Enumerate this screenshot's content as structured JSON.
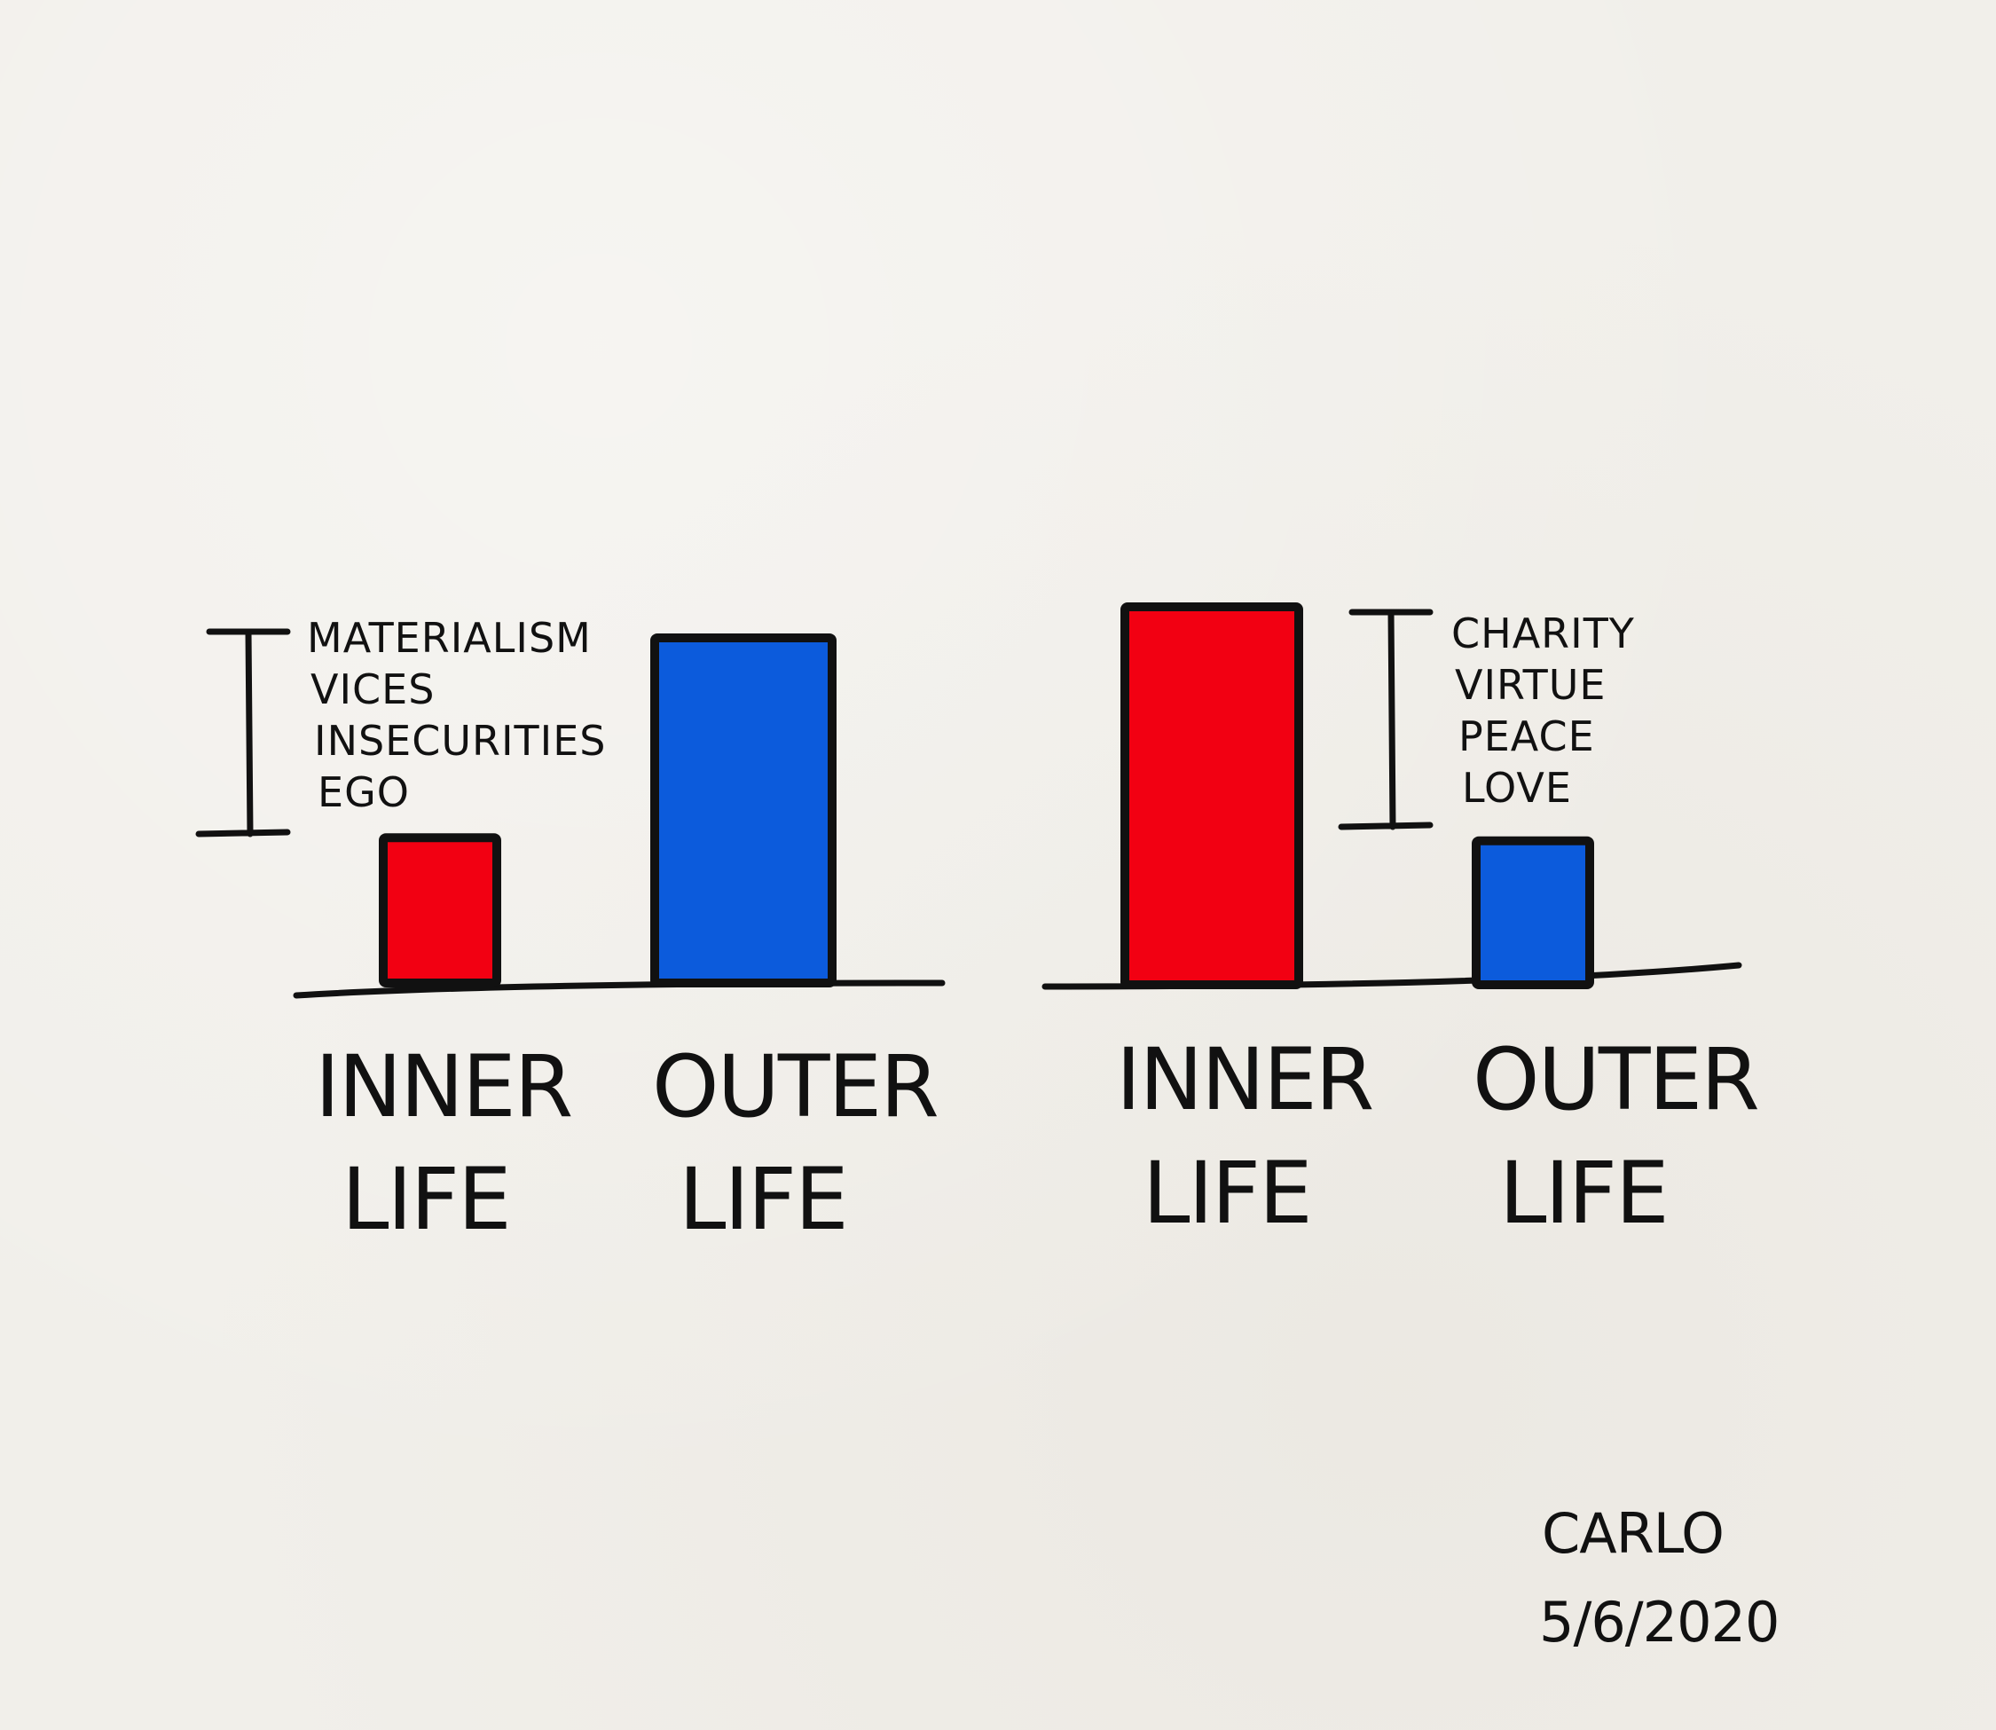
{
  "colors": {
    "inner": "#f20012",
    "outer": "#0c5bdc",
    "ink": "#111111",
    "paper": "#f1efea"
  },
  "chart_data": [
    {
      "type": "bar",
      "categories": [
        [
          "INNER",
          "LIFE"
        ],
        [
          "OUTER",
          "LIFE"
        ]
      ],
      "values": [
        1.6,
        3.8
      ],
      "ylim": [
        0,
        4.2
      ],
      "grid": false,
      "annotation": {
        "target": "INNER",
        "lines": [
          "MATERIALISM",
          "VICES",
          "INSECURITIES",
          "EGO"
        ]
      }
    },
    {
      "type": "bar",
      "categories": [
        [
          "INNER",
          "LIFE"
        ],
        [
          "OUTER",
          "LIFE"
        ]
      ],
      "values": [
        4.2,
        1.6
      ],
      "ylim": [
        0,
        4.2
      ],
      "grid": false,
      "annotation": {
        "target": "OUTER",
        "lines": [
          "CHARITY",
          "VIRTUE",
          "PEACE",
          "LOVE"
        ]
      }
    }
  ],
  "signature": {
    "name": "CARLO",
    "date": "5/6/2020"
  }
}
